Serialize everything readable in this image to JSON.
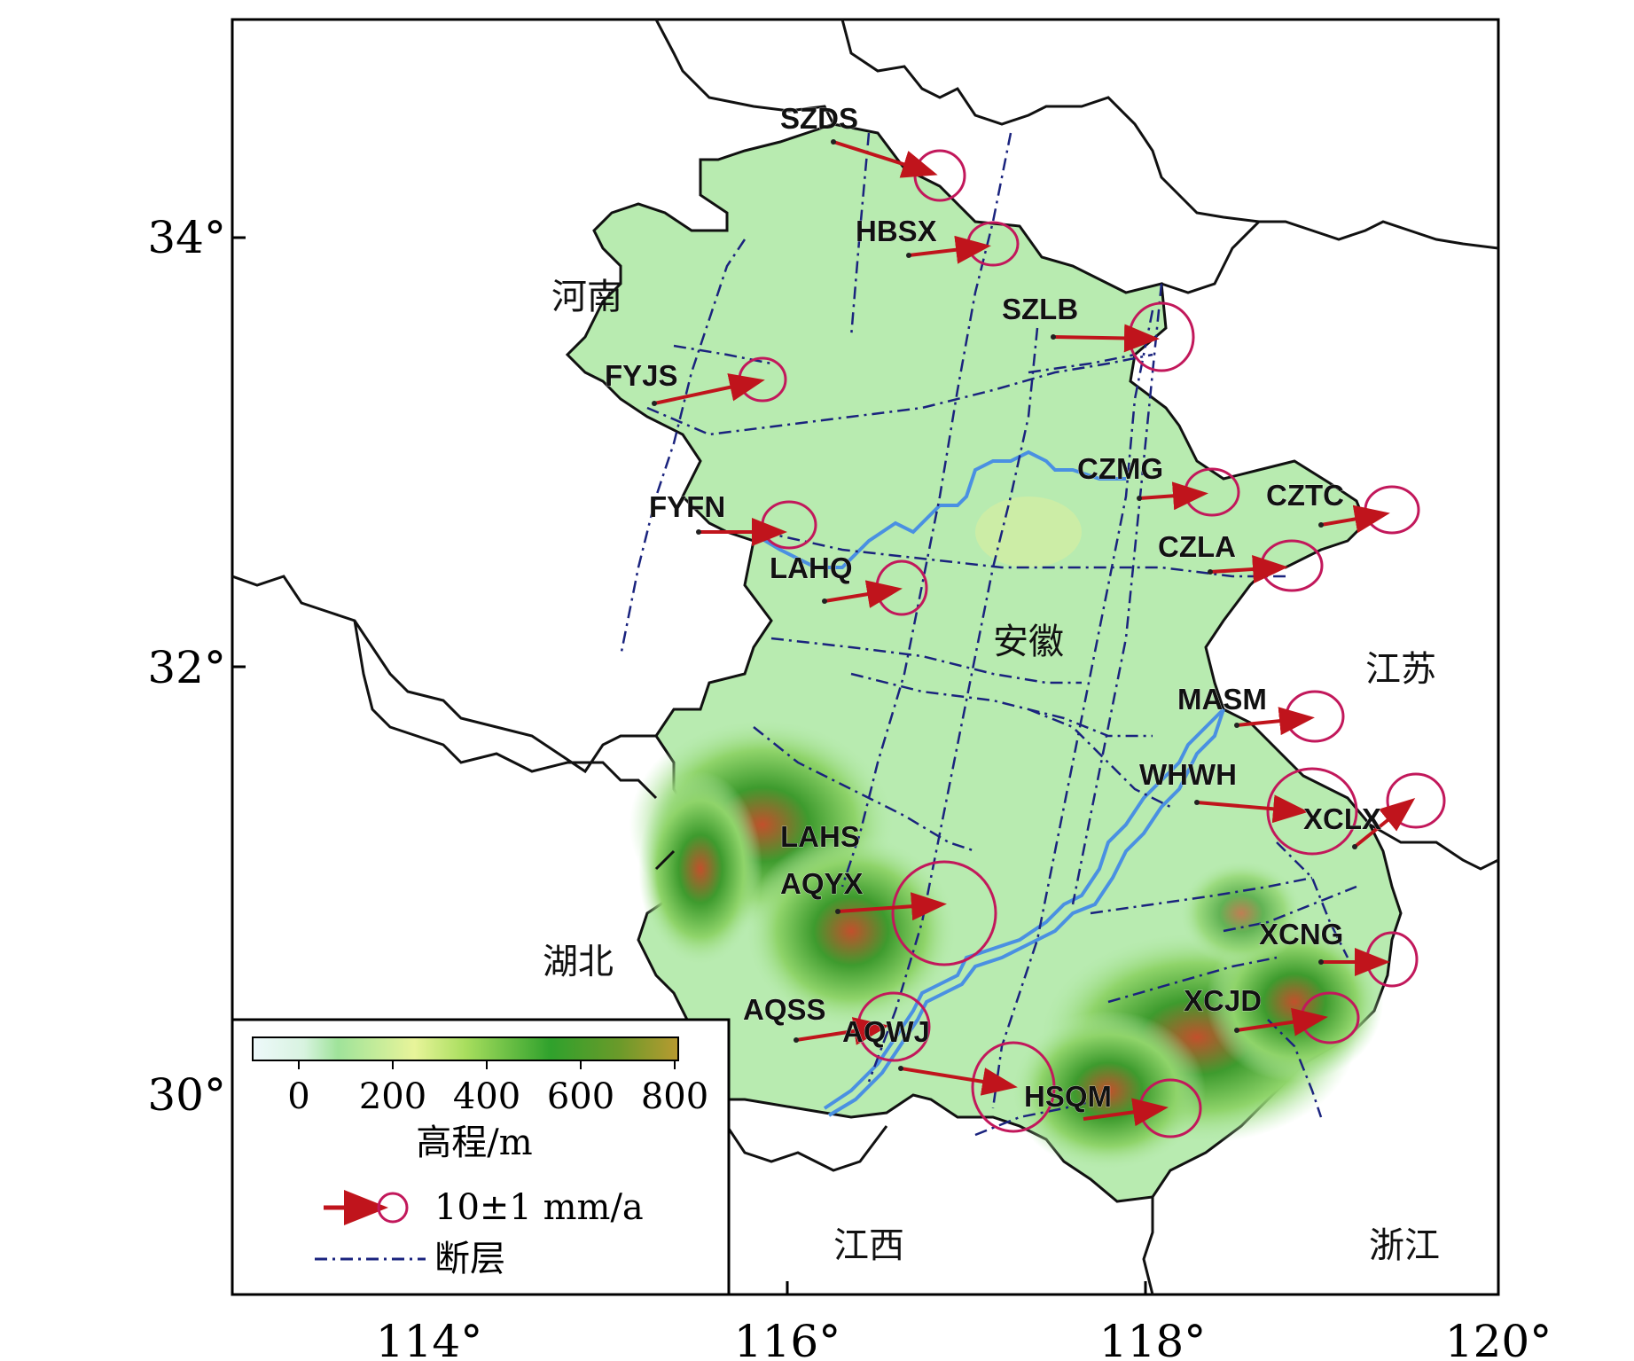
{
  "map": {
    "axes": {
      "x_ticks": [
        "114°",
        "116°",
        "118°",
        "120°"
      ],
      "y_ticks": [
        "34°",
        "32°",
        "30°"
      ]
    },
    "provinces": [
      {
        "key": "henan",
        "label": "河南"
      },
      {
        "key": "anhui",
        "label": "安徽"
      },
      {
        "key": "jiangsu",
        "label": "江苏"
      },
      {
        "key": "hubei",
        "label": "湖北"
      },
      {
        "key": "jiangxi",
        "label": "江西"
      },
      {
        "key": "zhejiang",
        "label": "浙江"
      }
    ],
    "stations": [
      {
        "name": "SZDS"
      },
      {
        "name": "HBSX"
      },
      {
        "name": "SZLB"
      },
      {
        "name": "FYJS"
      },
      {
        "name": "CZMG"
      },
      {
        "name": "CZTC"
      },
      {
        "name": "FYFN"
      },
      {
        "name": "CZLA"
      },
      {
        "name": "LAHQ"
      },
      {
        "name": "MASM"
      },
      {
        "name": "WHWH"
      },
      {
        "name": "XCLX"
      },
      {
        "name": "LAHS"
      },
      {
        "name": "AQYX"
      },
      {
        "name": "XCNG"
      },
      {
        "name": "XCJD"
      },
      {
        "name": "AQSS"
      },
      {
        "name": "AQWJ"
      },
      {
        "name": "HSQM"
      }
    ],
    "legend": {
      "colorbar_ticks": [
        "0",
        "200",
        "400",
        "600",
        "800"
      ],
      "colorbar_title": "高程/m",
      "vector_label": "10±1 mm/a",
      "fault_label": "断层"
    },
    "colors": {
      "arrow": "#c0141c",
      "ellipse": "#c2185b",
      "fault": "#1a237e",
      "river": "#4a90e2",
      "plain": "#b8ebb0",
      "boundary": "#111111"
    }
  }
}
